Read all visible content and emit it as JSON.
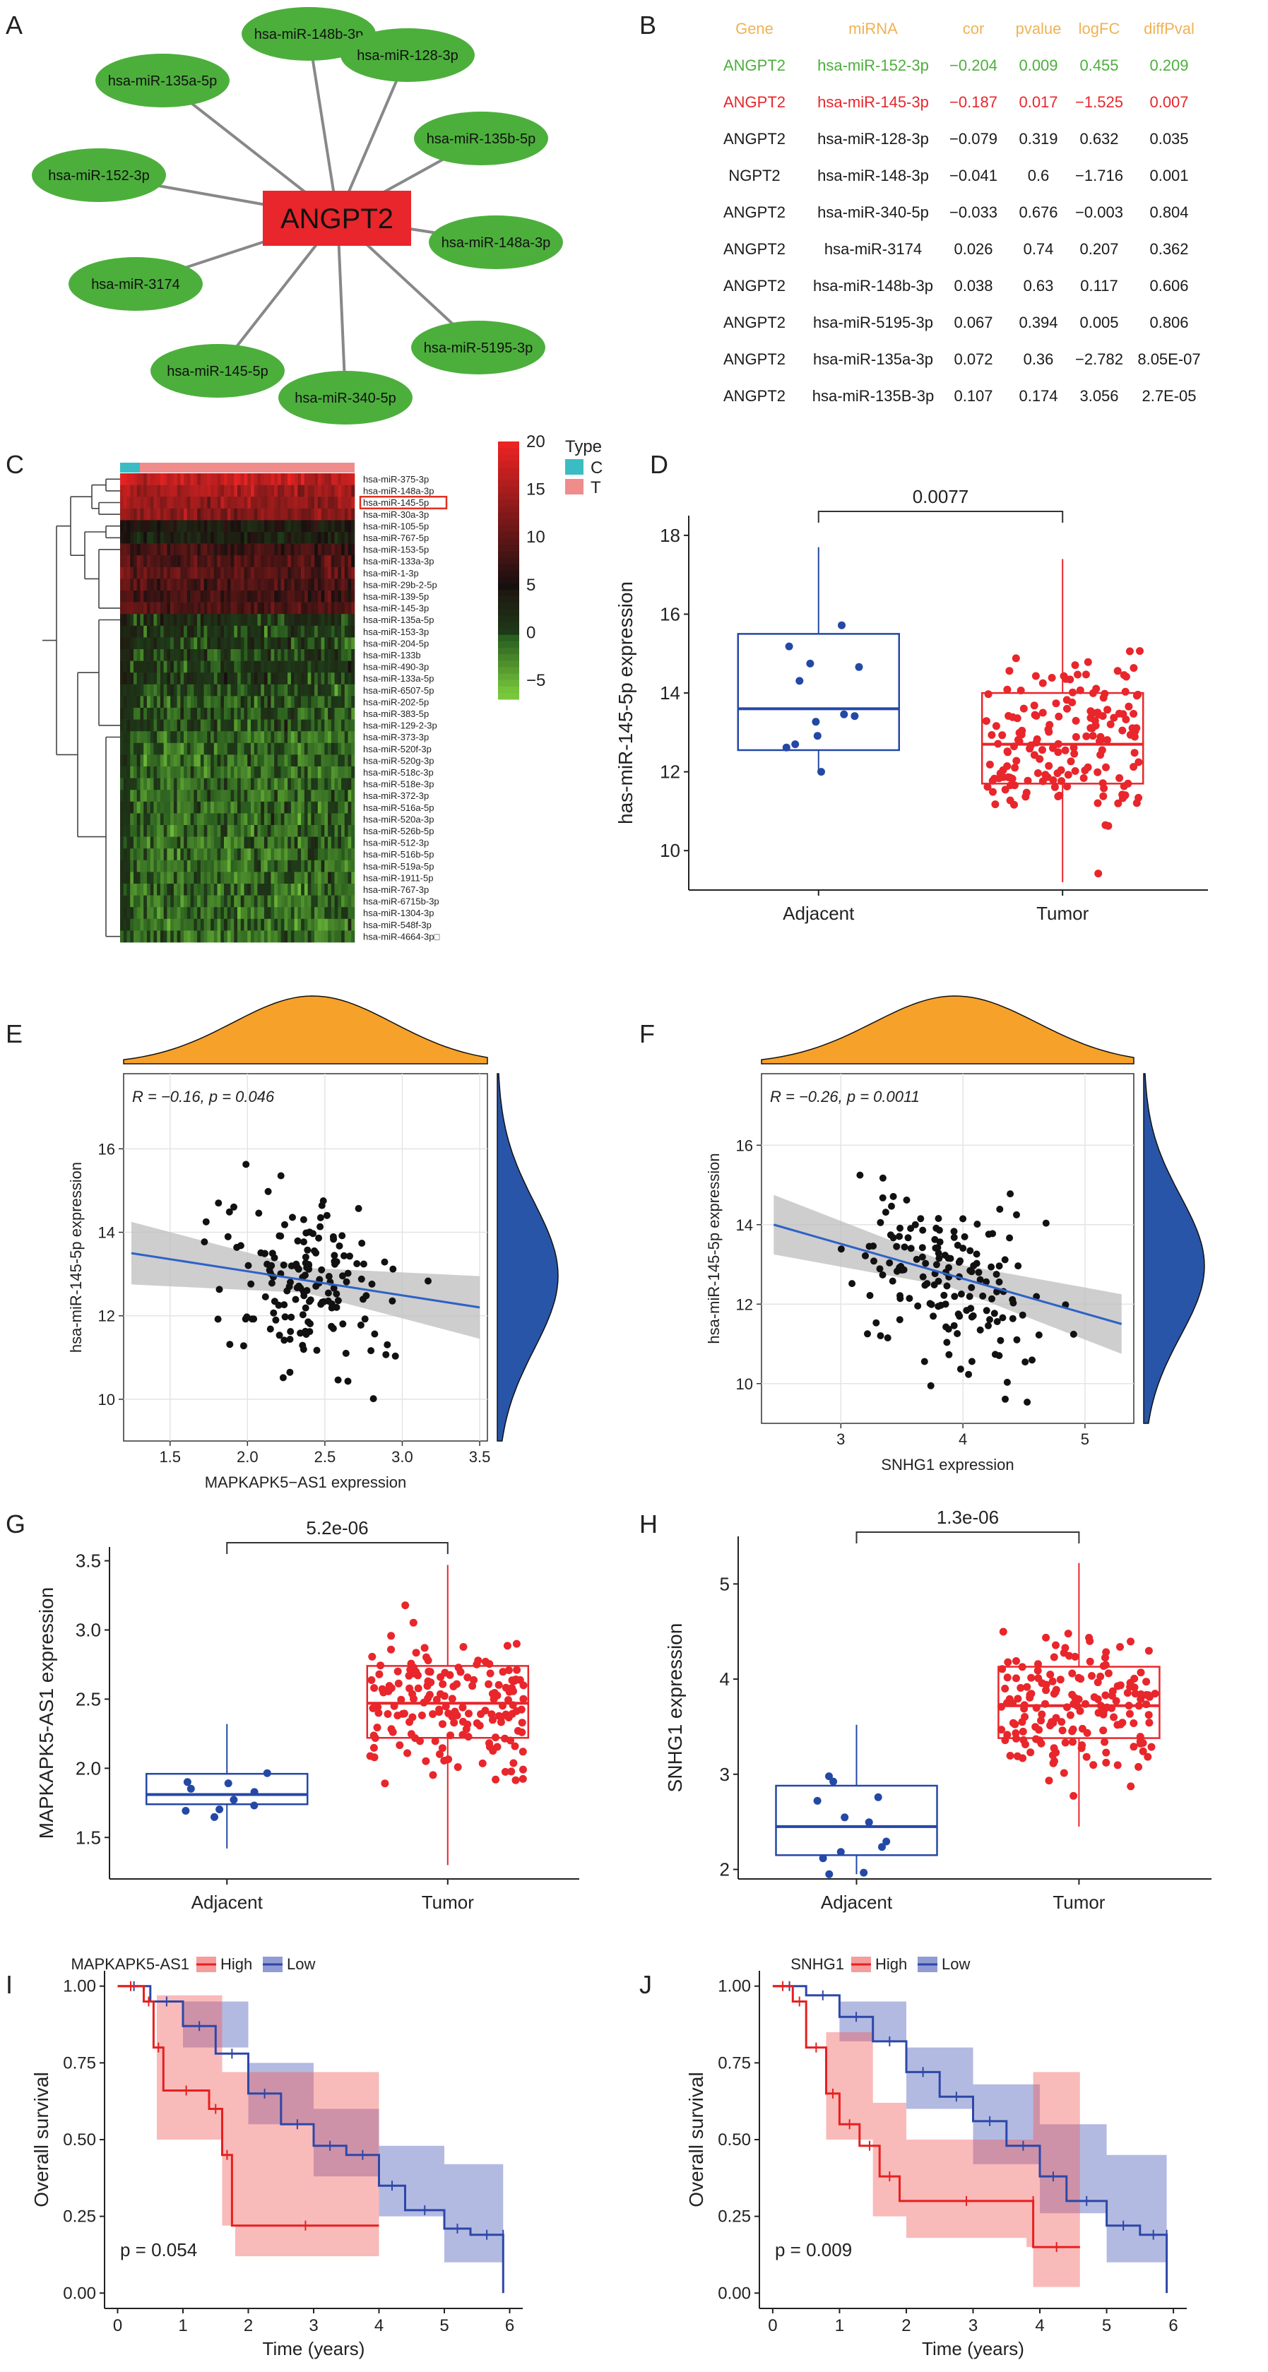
{
  "panel_letters": [
    "A",
    "B",
    "C",
    "D",
    "E",
    "F",
    "G",
    "H",
    "I",
    "J"
  ],
  "colors": {
    "network_node": "#4caf3c",
    "hub_node": "#e8262b",
    "table_header": "#f0b254",
    "highlight_green": "#4caf3c",
    "highlight_red": "#e8262b",
    "adjacent": "#2448a6",
    "tumor": "#e8262b",
    "density_top": "#f5a12a",
    "density_right": "#2855a8",
    "km_high": "#f05a5a",
    "km_low": "#4a5ab8"
  },
  "network": {
    "hub": "ANGPT2",
    "mirnas": [
      "hsa-miR-148b-3p",
      "hsa-miR-128-3p",
      "hsa-miR-135b-5p",
      "hsa-miR-148a-3p",
      "hsa-miR-5195-3p",
      "hsa-miR-340-5p",
      "hsa-miR-145-5p",
      "hsa-miR-3174",
      "hsa-miR-152-3p",
      "hsa-miR-135a-5p"
    ]
  },
  "table": {
    "headers": [
      "Gene",
      "miRNA",
      "cor",
      "pvalue",
      "logFC",
      "diffPval"
    ],
    "rows": [
      {
        "cells": [
          "ANGPT2",
          "hsa-miR-152-3p",
          "−0.204",
          "0.009",
          "0.455",
          "0.209"
        ],
        "color": "green"
      },
      {
        "cells": [
          "ANGPT2",
          "hsa-miR-145-3p",
          "−0.187",
          "0.017",
          "−1.525",
          "0.007"
        ],
        "color": "red"
      },
      {
        "cells": [
          "ANGPT2",
          "hsa-miR-128-3p",
          "−0.079",
          "0.319",
          "0.632",
          "0.035"
        ],
        "color": "black"
      },
      {
        "cells": [
          "NGPT2",
          "hsa-miR-148-3p",
          "−0.041",
          "0.6",
          "−1.716",
          "0.001"
        ],
        "color": "black"
      },
      {
        "cells": [
          "ANGPT2",
          "hsa-miR-340-5p",
          "−0.033",
          "0.676",
          "−0.003",
          "0.804"
        ],
        "color": "black"
      },
      {
        "cells": [
          "ANGPT2",
          "hsa-miR-3174",
          "0.026",
          "0.74",
          "0.207",
          "0.362"
        ],
        "color": "black"
      },
      {
        "cells": [
          "ANGPT2",
          "hsa-miR-148b-3p",
          "0.038",
          "0.63",
          "0.117",
          "0.606"
        ],
        "color": "black"
      },
      {
        "cells": [
          "ANGPT2",
          "hsa-miR-5195-3p",
          "0.067",
          "0.394",
          "0.005",
          "0.806"
        ],
        "color": "black"
      },
      {
        "cells": [
          "ANGPT2",
          "hsa-miR-135a-3p",
          "0.072",
          "0.36",
          "−2.782",
          "8.05E-07"
        ],
        "color": "black"
      },
      {
        "cells": [
          "ANGPT2",
          "hsa-miR-135B-3p",
          "0.107",
          "0.174",
          "3.056",
          "2.7E-05"
        ],
        "color": "black"
      }
    ]
  },
  "chart_data": [
    {
      "panel": "C",
      "type": "heatmap",
      "legend_title": "Type",
      "legend_groups": [
        "C",
        "T"
      ],
      "colorbar_ticks": [
        "20",
        "15",
        "10",
        "5",
        "0",
        "−5"
      ],
      "rows": [
        "hsa-miR-375-3p",
        "hsa-miR-148a-3p",
        "hsa-miR-145-5p",
        "hsa-miR-30a-3p",
        "hsa-miR-105-5p",
        "hsa-miR-767-5p",
        "hsa-miR-153-5p",
        "hsa-miR-133a-3p",
        "hsa-miR-1-3p",
        "hsa-miR-29b-2-5p",
        "hsa-miR-139-5p",
        "hsa-miR-145-3p",
        "hsa-miR-135a-5p",
        "hsa-miR-153-3p",
        "hsa-miR-204-5p",
        "hsa-miR-133b",
        "hsa-miR-490-3p",
        "hsa-miR-133a-5p",
        "hsa-miR-6507-5p",
        "hsa-miR-202-5p",
        "hsa-miR-383-5p",
        "hsa-miR-129-2-3p",
        "hsa-miR-373-3p",
        "hsa-miR-520f-3p",
        "hsa-miR-520g-3p",
        "hsa-miR-518c-3p",
        "hsa-miR-518e-3p",
        "hsa-miR-372-3p",
        "hsa-miR-516a-5p",
        "hsa-miR-520a-3p",
        "hsa-miR-526b-5p",
        "hsa-miR-512-3p",
        "hsa-miR-516b-5p",
        "hsa-miR-519a-5p",
        "hsa-miR-1911-5p",
        "hsa-miR-767-3p",
        "hsa-miR-6715b-3p",
        "hsa-miR-1304-3p",
        "hsa-miR-548f-3p",
        "hsa-miR-4664-3p□"
      ],
      "row_levels": [
        17,
        15,
        14,
        13,
        4,
        3,
        8,
        9,
        10,
        9,
        8,
        9,
        2,
        1,
        1,
        1,
        1,
        1,
        0,
        0,
        0,
        0,
        -1,
        -1,
        -1,
        -1,
        -1,
        -1,
        -1,
        -1,
        -1,
        -1,
        -1,
        -1,
        -1,
        -1,
        -1,
        -1,
        -1,
        -1
      ],
      "highlight_row": "hsa-miR-145-5p"
    },
    {
      "panel": "D",
      "type": "box",
      "ylabel": "has-miR-145-5p expression",
      "categories": [
        "Adjacent",
        "Tumor"
      ],
      "ylim": [
        9,
        18.5
      ],
      "yticks": [
        "10",
        "12",
        "14",
        "16",
        "18"
      ],
      "pvalue": "0.0077",
      "boxes": [
        {
          "q1": 12.55,
          "median": 13.6,
          "q3": 15.5,
          "lo": 12.0,
          "hi": 17.7
        },
        {
          "q1": 11.7,
          "median": 12.7,
          "q3": 14.0,
          "lo": 9.2,
          "hi": 17.4
        }
      ]
    },
    {
      "panel": "E",
      "type": "scatter",
      "xlabel": "MAPKAPK5−AS1 expression",
      "ylabel": "hsa-miR-145-5p expression",
      "annotation": "R = −0.16, p = 0.046",
      "xlim": [
        1.2,
        3.55
      ],
      "ylim": [
        9.0,
        17.8
      ],
      "xticks": [
        "1.5",
        "2.0",
        "2.5",
        "3.0",
        "3.5"
      ],
      "yticks": [
        "10",
        "12",
        "14",
        "16"
      ],
      "fit": {
        "x0": 1.25,
        "y0": 13.5,
        "x1": 3.5,
        "y1": 12.2
      }
    },
    {
      "panel": "F",
      "type": "scatter",
      "xlabel": "SNHG1 expression",
      "ylabel": "hsa-miR-145-5p expression",
      "annotation": "R = −0.26, p = 0.0011",
      "xlim": [
        2.35,
        5.4
      ],
      "ylim": [
        9.0,
        17.8
      ],
      "xticks": [
        "3",
        "4",
        "5"
      ],
      "yticks": [
        "10",
        "12",
        "14",
        "16"
      ],
      "fit": {
        "x0": 2.45,
        "y0": 14.0,
        "x1": 5.3,
        "y1": 11.5
      }
    },
    {
      "panel": "G",
      "type": "box",
      "ylabel": "MAPKAPK5-AS1 expression",
      "categories": [
        "Adjacent",
        "Tumor"
      ],
      "ylim": [
        1.2,
        3.6
      ],
      "yticks": [
        "1.5",
        "2.0",
        "2.5",
        "3.0",
        "3.5"
      ],
      "pvalue": "5.2e-06",
      "boxes": [
        {
          "q1": 1.74,
          "median": 1.81,
          "q3": 1.96,
          "lo": 1.42,
          "hi": 2.32
        },
        {
          "q1": 2.22,
          "median": 2.47,
          "q3": 2.74,
          "lo": 1.3,
          "hi": 3.47
        }
      ]
    },
    {
      "panel": "H",
      "type": "box",
      "ylabel": "SNHG1 expression",
      "categories": [
        "Adjacent",
        "Tumor"
      ],
      "ylim": [
        1.9,
        5.5
      ],
      "yticks": [
        "2",
        "3",
        "4",
        "5"
      ],
      "pvalue": "1.3e-06",
      "boxes": [
        {
          "q1": 2.15,
          "median": 2.45,
          "q3": 2.88,
          "lo": 1.95,
          "hi": 3.52
        },
        {
          "q1": 3.38,
          "median": 3.72,
          "q3": 4.13,
          "lo": 2.45,
          "hi": 5.22
        }
      ]
    },
    {
      "panel": "I",
      "type": "line",
      "legend_title": "MAPKAPK5-AS1",
      "series": [
        {
          "name": "High"
        },
        {
          "name": "Low"
        }
      ],
      "xlabel": "Time (years)",
      "ylabel": "Overall survival",
      "xlim": [
        -0.2,
        6.2
      ],
      "ylim": [
        -0.05,
        1.05
      ],
      "xticks": [
        "0",
        "1",
        "2",
        "3",
        "4",
        "5",
        "6"
      ],
      "yticks": [
        "0.00",
        "0.25",
        "0.50",
        "0.75",
        "1.00"
      ],
      "pvalue": "p = 0.054",
      "high_curve": [
        [
          0,
          1.0
        ],
        [
          0.4,
          0.95
        ],
        [
          0.55,
          0.8
        ],
        [
          0.7,
          0.66
        ],
        [
          1.4,
          0.6
        ],
        [
          1.6,
          0.45
        ],
        [
          1.75,
          0.22
        ],
        [
          4.0,
          0.22
        ]
      ],
      "high_band": [
        [
          0,
          1.0,
          1.0
        ],
        [
          0.6,
          0.5,
          0.97
        ],
        [
          1.6,
          0.22,
          0.72
        ],
        [
          1.8,
          0.12,
          0.72
        ],
        [
          4.0,
          0.12,
          0.72
        ]
      ],
      "low_curve": [
        [
          0,
          1.0
        ],
        [
          0.5,
          0.95
        ],
        [
          1.0,
          0.87
        ],
        [
          1.5,
          0.78
        ],
        [
          2.0,
          0.65
        ],
        [
          2.5,
          0.55
        ],
        [
          3.0,
          0.48
        ],
        [
          3.5,
          0.45
        ],
        [
          4.0,
          0.35
        ],
        [
          4.4,
          0.27
        ],
        [
          5.0,
          0.21
        ],
        [
          5.4,
          0.19
        ],
        [
          5.9,
          0.19
        ],
        [
          5.9,
          0.0
        ]
      ],
      "low_band": [
        [
          0,
          1.0,
          1.0
        ],
        [
          1.0,
          0.8,
          0.95
        ],
        [
          2.0,
          0.55,
          0.75
        ],
        [
          3.0,
          0.38,
          0.6
        ],
        [
          4.0,
          0.25,
          0.48
        ],
        [
          5.0,
          0.1,
          0.42
        ],
        [
          5.9,
          0.0,
          0.42
        ]
      ]
    },
    {
      "panel": "J",
      "type": "line",
      "legend_title": "SNHG1",
      "series": [
        {
          "name": "High"
        },
        {
          "name": "Low"
        }
      ],
      "xlabel": "Time (years)",
      "ylabel": "Overall survival",
      "xlim": [
        -0.2,
        6.2
      ],
      "ylim": [
        -0.05,
        1.05
      ],
      "xticks": [
        "0",
        "1",
        "2",
        "3",
        "4",
        "5",
        "6"
      ],
      "yticks": [
        "0.00",
        "0.25",
        "0.50",
        "0.75",
        "1.00"
      ],
      "pvalue": "p = 0.009",
      "high_curve": [
        [
          0,
          1.0
        ],
        [
          0.3,
          0.95
        ],
        [
          0.5,
          0.8
        ],
        [
          0.8,
          0.65
        ],
        [
          1.0,
          0.55
        ],
        [
          1.3,
          0.48
        ],
        [
          1.6,
          0.38
        ],
        [
          1.9,
          0.3
        ],
        [
          3.9,
          0.3
        ],
        [
          3.9,
          0.15
        ],
        [
          4.6,
          0.15
        ]
      ],
      "high_band": [
        [
          0,
          1.0,
          1.0
        ],
        [
          0.8,
          0.5,
          0.85
        ],
        [
          1.5,
          0.25,
          0.62
        ],
        [
          2.0,
          0.18,
          0.5
        ],
        [
          3.8,
          0.15,
          0.5
        ],
        [
          3.9,
          0.02,
          0.72
        ],
        [
          4.6,
          0.02,
          0.72
        ]
      ],
      "low_curve": [
        [
          0,
          1.0
        ],
        [
          0.5,
          0.97
        ],
        [
          1.0,
          0.9
        ],
        [
          1.5,
          0.82
        ],
        [
          2.0,
          0.72
        ],
        [
          2.5,
          0.64
        ],
        [
          3.0,
          0.56
        ],
        [
          3.5,
          0.48
        ],
        [
          4.0,
          0.38
        ],
        [
          4.4,
          0.3
        ],
        [
          5.0,
          0.22
        ],
        [
          5.5,
          0.19
        ],
        [
          5.9,
          0.19
        ],
        [
          5.9,
          0.0
        ]
      ],
      "low_band": [
        [
          0,
          1.0,
          1.0
        ],
        [
          1.0,
          0.82,
          0.95
        ],
        [
          2.0,
          0.6,
          0.8
        ],
        [
          3.0,
          0.42,
          0.68
        ],
        [
          4.0,
          0.26,
          0.55
        ],
        [
          5.0,
          0.1,
          0.45
        ],
        [
          5.9,
          0.0,
          0.45
        ]
      ]
    }
  ]
}
